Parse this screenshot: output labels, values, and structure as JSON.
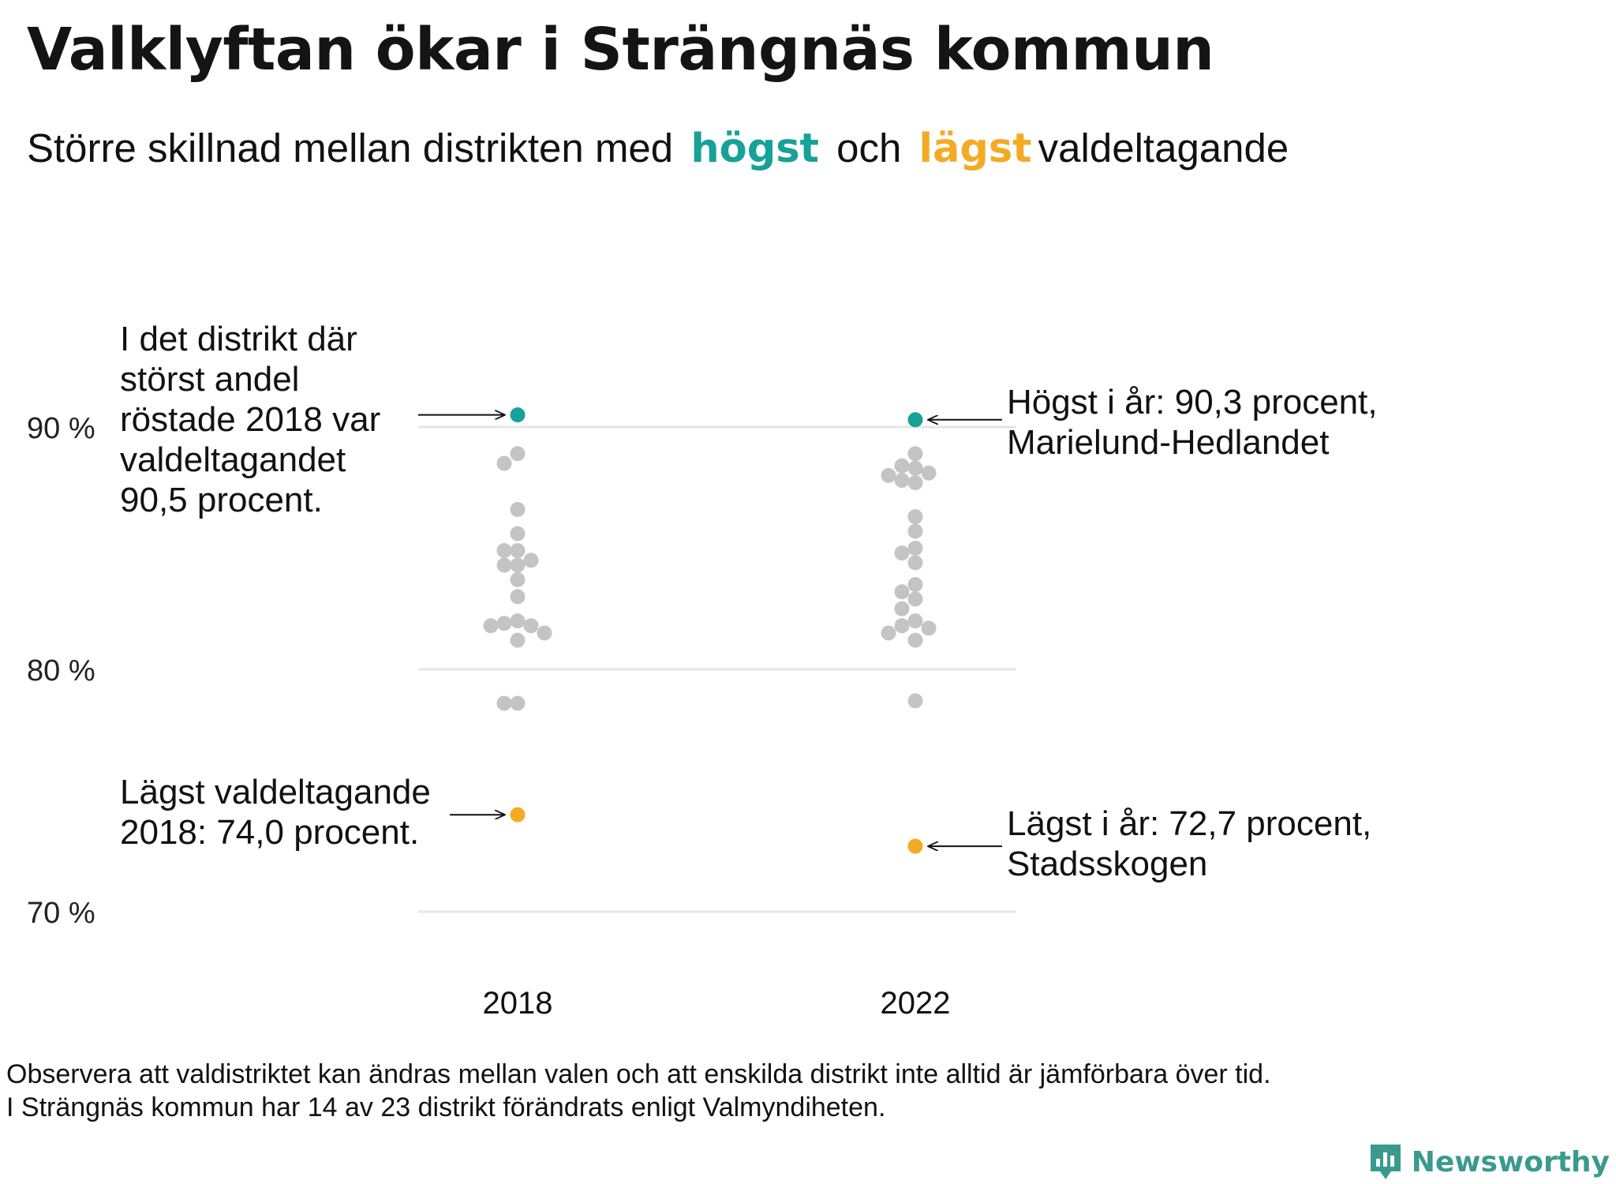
{
  "title": "Valklyftan ökar i Strängnäs kommun",
  "subtitle": {
    "part1": "Större skillnad mellan distrikten med",
    "highlight_high": "högst",
    "middle": "och",
    "highlight_low": "lägst",
    "part2": "valdeltagande"
  },
  "colors": {
    "high": "#16a199",
    "low": "#f5aa24",
    "other": "#c4c4c4",
    "grid": "#e6e6e6",
    "brand": "#3a9a8e"
  },
  "annotations": {
    "left_top": "I det distrikt där störst andel röstade 2018 var valdeltagandet 90,5 procent.",
    "left_bottom": "Lägst valdeltagande 2018: 74,0 procent.",
    "right_top_line1": "Högst i år: 90,3 procent,",
    "right_top_line2": "Marielund-Hedlandet",
    "right_bottom_line1": "Lägst i år: 72,7 procent,",
    "right_bottom_line2": "Stadsskogen"
  },
  "footnote": {
    "line1": "Observera att valdistriktet kan ändras mellan valen och att enskilda distrikt inte alltid är jämförbara över tid.",
    "line2": "I Strängnäs kommun har 14 av 23 distrikt förändrats enligt Valmyndiheten."
  },
  "brand": {
    "name": "Newsworthy",
    "icon": "newsworthy-logo-icon"
  },
  "chart_data": {
    "type": "scatter",
    "title": "Valklyftan ökar i Strängnäs kommun",
    "subtitle": "Större skillnad mellan distrikten med högst och lägst valdeltagande",
    "categories": [
      "2018",
      "2022"
    ],
    "ylim": [
      70,
      90
    ],
    "yticks": [
      {
        "value": 90,
        "label": "90 %"
      },
      {
        "value": 80,
        "label": "80 %"
      },
      {
        "value": 70,
        "label": "70 %"
      }
    ],
    "grid": true,
    "series": [
      {
        "year": "2018",
        "highest": 90.5,
        "lowest": 74.0,
        "others": [
          88.9,
          88.5,
          86.6,
          85.6,
          84.9,
          84.9,
          84.5,
          84.3,
          84.3,
          83.7,
          83.0,
          82.0,
          81.9,
          81.8,
          81.8,
          81.5,
          81.2,
          78.6,
          78.6
        ]
      },
      {
        "year": "2022",
        "highest": 90.3,
        "lowest": 72.7,
        "others": [
          88.9,
          88.4,
          88.3,
          88.1,
          88.0,
          87.8,
          87.7,
          86.3,
          85.7,
          85.0,
          84.8,
          84.4,
          83.5,
          83.2,
          82.9,
          82.5,
          82.0,
          81.8,
          81.7,
          81.5,
          81.2,
          78.7
        ]
      }
    ]
  }
}
